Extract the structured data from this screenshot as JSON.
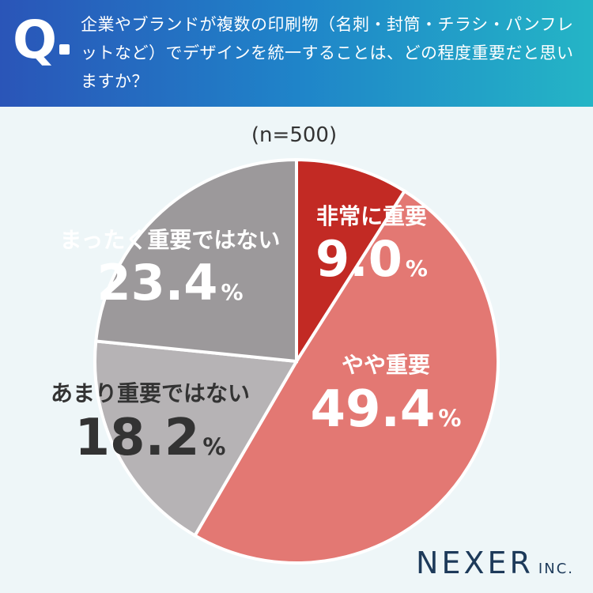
{
  "header": {
    "q_label": "Q",
    "question": "企業やブランドが複数の印刷物（名刺・封筒・チラシ・パンフレットなど）でデザインを統一することは、どの程度重要だと思いますか？"
  },
  "chart_data": {
    "type": "pie",
    "sample_label": "(n=500)",
    "slices": [
      {
        "label": "非常に重要",
        "value": 9.0,
        "color": "#c22a24",
        "text_color": "#ffffff"
      },
      {
        "label": "やや重要",
        "value": 49.4,
        "color": "#e37873",
        "text_color": "#ffffff"
      },
      {
        "label": "あまり重要ではない",
        "value": 18.2,
        "color": "#b6b3b5",
        "text_color": "#333333"
      },
      {
        "label": "まったく重要ではない",
        "value": 23.4,
        "color": "#9c999b",
        "text_color": "#ffffff"
      }
    ],
    "unit": "%"
  },
  "brand": {
    "name": "NEXER",
    "suffix": "INC."
  }
}
